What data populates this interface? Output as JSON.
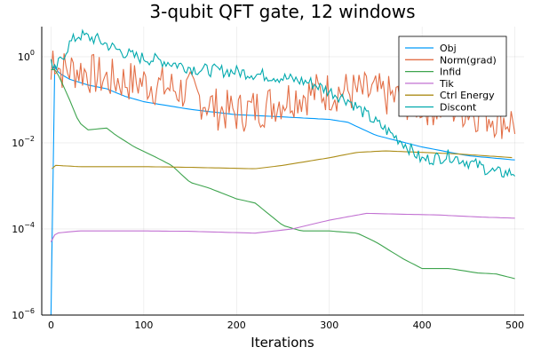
{
  "chart_data": {
    "type": "line",
    "title": "3-qubit QFT gate, 12 windows",
    "xlabel": "Iterations",
    "ylabel": "",
    "xlim": [
      -10,
      510
    ],
    "ylim": [
      1e-06,
      5
    ],
    "yscale": "log",
    "grid": true,
    "legend_position": "top-right",
    "x_ticks": [
      "0",
      "100",
      "200",
      "300",
      "400",
      "500"
    ],
    "y_ticks": [
      {
        "base": "10",
        "exp": "0"
      },
      {
        "base": "10",
        "exp": "−2"
      },
      {
        "base": "10",
        "exp": "−4"
      },
      {
        "base": "10",
        "exp": "−6"
      }
    ],
    "series": [
      {
        "name": "Obj",
        "color": "#009AFA",
        "points": [
          [
            0,
            1e-06
          ],
          [
            1,
            0.9
          ],
          [
            5,
            0.5
          ],
          [
            10,
            0.4
          ],
          [
            20,
            0.3
          ],
          [
            40,
            0.22
          ],
          [
            60,
            0.18
          ],
          [
            80,
            0.12
          ],
          [
            100,
            0.09
          ],
          [
            150,
            0.06
          ],
          [
            200,
            0.045
          ],
          [
            250,
            0.04
          ],
          [
            300,
            0.035
          ],
          [
            320,
            0.03
          ],
          [
            350,
            0.015
          ],
          [
            400,
            0.008
          ],
          [
            450,
            0.005
          ],
          [
            500,
            0.004
          ]
        ]
      },
      {
        "name": "Norm(grad)",
        "color": "#E36F47",
        "noise": 0.5,
        "points": [
          [
            0,
            0.3
          ],
          [
            2,
            1.2
          ],
          [
            10,
            0.5
          ],
          [
            30,
            0.5
          ],
          [
            60,
            0.3
          ],
          [
            100,
            0.25
          ],
          [
            150,
            0.15
          ],
          [
            180,
            0.06
          ],
          [
            200,
            0.05
          ],
          [
            230,
            0.07
          ],
          [
            260,
            0.12
          ],
          [
            290,
            0.15
          ],
          [
            310,
            0.16
          ],
          [
            350,
            0.14
          ],
          [
            400,
            0.08
          ],
          [
            450,
            0.06
          ],
          [
            500,
            0.03
          ]
        ]
      },
      {
        "name": "Infid",
        "color": "#3EA44E",
        "points": [
          [
            0,
            0.5
          ],
          [
            5,
            0.5
          ],
          [
            10,
            0.3
          ],
          [
            20,
            0.1
          ],
          [
            30,
            0.03
          ],
          [
            40,
            0.02
          ],
          [
            60,
            0.022
          ],
          [
            70,
            0.015
          ],
          [
            90,
            0.008
          ],
          [
            110,
            0.005
          ],
          [
            130,
            0.003
          ],
          [
            150,
            0.0012
          ],
          [
            170,
            0.0009
          ],
          [
            200,
            0.0005
          ],
          [
            220,
            0.0004
          ],
          [
            250,
            0.00012
          ],
          [
            270,
            9e-05
          ],
          [
            300,
            9e-05
          ],
          [
            330,
            8e-05
          ],
          [
            350,
            5e-05
          ],
          [
            380,
            2e-05
          ],
          [
            400,
            1.2e-05
          ],
          [
            430,
            1.2e-05
          ],
          [
            460,
            9.5e-06
          ],
          [
            480,
            9e-06
          ],
          [
            500,
            7e-06
          ]
        ]
      },
      {
        "name": "Tik",
        "color": "#C271D2",
        "points": [
          [
            0,
            5e-05
          ],
          [
            5,
            8e-05
          ],
          [
            30,
            9e-05
          ],
          [
            100,
            9e-05
          ],
          [
            150,
            8.8e-05
          ],
          [
            220,
            8e-05
          ],
          [
            260,
            0.0001
          ],
          [
            300,
            0.00016
          ],
          [
            340,
            0.00023
          ],
          [
            380,
            0.00022
          ],
          [
            420,
            0.00021
          ],
          [
            460,
            0.00019
          ],
          [
            500,
            0.000178
          ]
        ]
      },
      {
        "name": "Ctrl Energy",
        "color": "#AC8D18",
        "points": [
          [
            1,
            0.0025
          ],
          [
            5,
            0.003
          ],
          [
            30,
            0.0028
          ],
          [
            100,
            0.0028
          ],
          [
            150,
            0.0027
          ],
          [
            220,
            0.0025
          ],
          [
            250,
            0.003
          ],
          [
            300,
            0.0045
          ],
          [
            330,
            0.006
          ],
          [
            360,
            0.0065
          ],
          [
            400,
            0.006
          ],
          [
            440,
            0.0055
          ],
          [
            500,
            0.0045
          ]
        ]
      },
      {
        "name": "Discont",
        "color": "#00A9AD",
        "noise": 0.15,
        "points": [
          [
            0,
            0.8
          ],
          [
            2,
            0.4
          ],
          [
            10,
            0.8
          ],
          [
            20,
            2.0
          ],
          [
            30,
            3.2
          ],
          [
            50,
            2.5
          ],
          [
            70,
            1.5
          ],
          [
            90,
            1.0
          ],
          [
            120,
            0.8
          ],
          [
            160,
            0.5
          ],
          [
            200,
            0.45
          ],
          [
            240,
            0.35
          ],
          [
            280,
            0.25
          ],
          [
            320,
            0.1
          ],
          [
            350,
            0.03
          ],
          [
            380,
            0.01
          ],
          [
            400,
            0.004
          ],
          [
            430,
            0.005
          ],
          [
            460,
            0.003
          ],
          [
            480,
            0.002
          ],
          [
            500,
            0.002
          ]
        ]
      }
    ]
  }
}
